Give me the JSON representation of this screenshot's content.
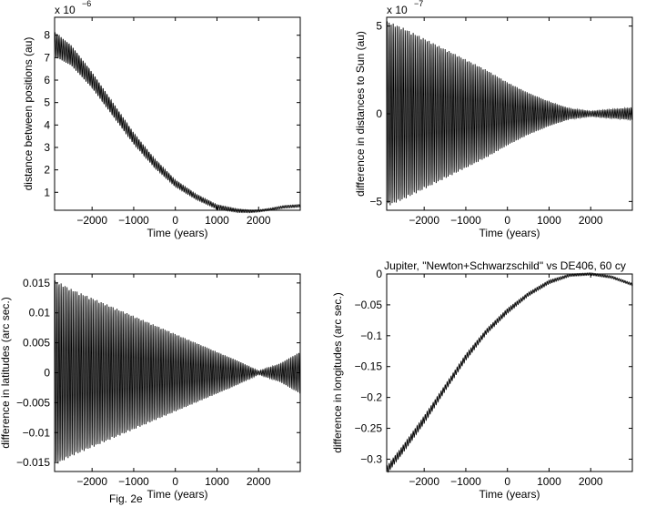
{
  "chart_data": [
    {
      "type": "line",
      "title": "",
      "xlabel": "Time (years)",
      "ylabel": "distance between positions (au)",
      "exponent_label": "x 10",
      "exponent_power": "-6",
      "xlim": [
        -2900,
        3000
      ],
      "ylim": [
        0.2,
        8.8
      ],
      "xticks": [
        "-2000",
        "-1000",
        "0",
        "1000",
        "2000"
      ],
      "xtick_values": [
        -2000,
        -1000,
        0,
        1000,
        2000
      ],
      "yticks": [
        "1",
        "2",
        "3",
        "4",
        "5",
        "6",
        "7",
        "8"
      ],
      "ytick_values": [
        1,
        2,
        3,
        4,
        5,
        6,
        7,
        8
      ],
      "series": [
        {
          "color": "#000000",
          "x": [
            -2900,
            -2500,
            -2000,
            -1500,
            -1000,
            -500,
            0,
            500,
            1000,
            1500,
            1800,
            2000,
            2300,
            2600,
            3000
          ],
          "y": [
            7.6,
            7.1,
            6.0,
            4.7,
            3.4,
            2.3,
            1.4,
            0.8,
            0.35,
            0.18,
            0.15,
            0.17,
            0.25,
            0.35,
            0.4
          ],
          "oscillation_amplitude": [
            0.55,
            0.45,
            0.35,
            0.3,
            0.25,
            0.2,
            0.15,
            0.12,
            0.1,
            0.08,
            0.06,
            0.05,
            0.05,
            0.06,
            0.06
          ]
        }
      ]
    },
    {
      "type": "line",
      "title": "",
      "xlabel": "Time (years)",
      "ylabel": "difference in distances to Sun (au)",
      "exponent_label": "x 10",
      "exponent_power": "-7",
      "xlim": [
        -2900,
        3000
      ],
      "ylim": [
        -5.5,
        5.5
      ],
      "xticks": [
        "-2000",
        "-1000",
        "0",
        "1000",
        "2000"
      ],
      "xtick_values": [
        -2000,
        -1000,
        0,
        1000,
        2000
      ],
      "yticks": [
        "-5",
        "0",
        "5"
      ],
      "ytick_values": [
        -5,
        0,
        5
      ],
      "series": [
        {
          "color": "#000000",
          "x": [
            -2900,
            -2500,
            -2000,
            -1500,
            -1000,
            -500,
            0,
            500,
            1000,
            1500,
            2000,
            2500,
            3000
          ],
          "y": [
            0,
            0,
            0,
            0,
            0,
            0,
            0,
            0,
            0,
            0,
            0,
            0,
            0
          ],
          "oscillation_amplitude": [
            5.3,
            4.9,
            4.3,
            3.7,
            3.1,
            2.5,
            1.8,
            1.2,
            0.7,
            0.3,
            0.15,
            0.25,
            0.35
          ]
        }
      ]
    },
    {
      "type": "line",
      "title": "",
      "xlabel": "Time (years)",
      "ylabel": "difference in latitudes (arc sec.)",
      "xlim": [
        -2900,
        3000
      ],
      "ylim": [
        -0.0165,
        0.0165
      ],
      "xticks": [
        "-2000",
        "-1000",
        "0",
        "1000",
        "2000"
      ],
      "xtick_values": [
        -2000,
        -1000,
        0,
        1000,
        2000
      ],
      "yticks": [
        "-0.015",
        "-0.01",
        "-0.005",
        "0",
        "0.005",
        "0.01",
        "0.015"
      ],
      "ytick_values": [
        -0.015,
        -0.01,
        -0.005,
        0,
        0.005,
        0.01,
        0.015
      ],
      "series": [
        {
          "color": "#000000",
          "x": [
            -2900,
            -2500,
            -2000,
            -1500,
            -1000,
            -500,
            0,
            500,
            1000,
            1500,
            2000,
            2500,
            3000
          ],
          "y": [
            0,
            0,
            0,
            0,
            0,
            0,
            0,
            0,
            0,
            0,
            0,
            0,
            0
          ],
          "oscillation_amplitude": [
            0.0155,
            0.014,
            0.0125,
            0.011,
            0.0095,
            0.008,
            0.0065,
            0.005,
            0.0035,
            0.002,
            0.0003,
            0.0015,
            0.0035
          ]
        }
      ]
    },
    {
      "type": "line",
      "title": "Jupiter, \"Newton+Schwarzschild\" vs DE406, 60 cy",
      "xlabel": "Time (years)",
      "ylabel": "difference in longitudes (arc sec.)",
      "xlim": [
        -2900,
        3000
      ],
      "ylim": [
        -0.32,
        0.0
      ],
      "xticks": [
        "-2000",
        "-1000",
        "0",
        "1000",
        "2000"
      ],
      "xtick_values": [
        -2000,
        -1000,
        0,
        1000,
        2000
      ],
      "yticks": [
        "-0.3",
        "-0.25",
        "-0.2",
        "-0.15",
        "-0.1",
        "-0.05",
        "0"
      ],
      "ytick_values": [
        -0.3,
        -0.25,
        -0.2,
        -0.15,
        -0.1,
        -0.05,
        0
      ],
      "series": [
        {
          "color": "#000000",
          "x": [
            -2900,
            -2500,
            -2000,
            -1500,
            -1000,
            -500,
            0,
            500,
            1000,
            1500,
            2000,
            2500,
            3000
          ],
          "y": [
            -0.318,
            -0.283,
            -0.236,
            -0.185,
            -0.135,
            -0.093,
            -0.06,
            -0.033,
            -0.013,
            -0.002,
            0.0,
            -0.005,
            -0.017
          ],
          "oscillation_amplitude": [
            0.006,
            0.006,
            0.006,
            0.005,
            0.005,
            0.004,
            0.004,
            0.003,
            0.003,
            0.002,
            0.002,
            0.002,
            0.002
          ]
        }
      ]
    }
  ],
  "caption": "Fig. 2e"
}
